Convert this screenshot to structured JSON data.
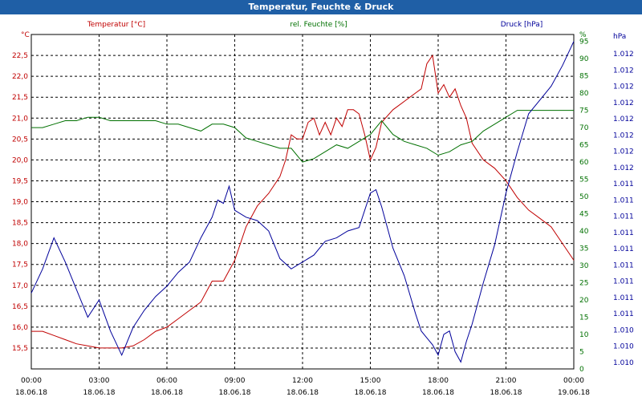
{
  "window": {
    "title": "Temperatur, Feuchte & Druck"
  },
  "colors": {
    "temperature": "#c00000",
    "humidity": "#007000",
    "pressure": "#00009a",
    "grid": "#000000",
    "frame": "#000000",
    "titlebar": "#1f5fa6"
  },
  "chart_data": {
    "type": "line",
    "grid": true,
    "x_start": "18.06.18 00:00",
    "x_end": "19.06.18 00:00",
    "x_ticks": [
      {
        "time": "00:00",
        "date": "18.06.18"
      },
      {
        "time": "03:00",
        "date": "18.06.18"
      },
      {
        "time": "06:00",
        "date": "18.06.18"
      },
      {
        "time": "09:00",
        "date": "18.06.18"
      },
      {
        "time": "12:00",
        "date": "18.06.18"
      },
      {
        "time": "15:00",
        "date": "18.06.18"
      },
      {
        "time": "18:00",
        "date": "18.06.18"
      },
      {
        "time": "21:00",
        "date": "18.06.18"
      },
      {
        "time": "00:00",
        "date": "19.06.18"
      }
    ],
    "axes": {
      "temperature": {
        "unit": "°C",
        "label": "Temperatur [°C]",
        "ylim": [
          15.0,
          23.0
        ],
        "ticks": [
          "15,5",
          "16,0",
          "16,5",
          "17,0",
          "17,5",
          "18,0",
          "18,5",
          "19,0",
          "19,5",
          "20,0",
          "20,5",
          "21,0",
          "21,5",
          "22,0",
          "22,5"
        ]
      },
      "humidity": {
        "unit": "%",
        "label": "rel. Feuchte [%]",
        "ylim": [
          0,
          97
        ],
        "ticks": [
          "0",
          "5",
          "10",
          "15",
          "20",
          "25",
          "30",
          "35",
          "40",
          "45",
          "50",
          "55",
          "60",
          "65",
          "70",
          "75",
          "80",
          "85",
          "90",
          "95"
        ]
      },
      "pressure": {
        "unit": "hPa",
        "label": "Druck [hPa]",
        "ticks": [
          "1.010",
          "1.010",
          "1.010",
          "1.011",
          "1.011",
          "1.011",
          "1.011",
          "1.011",
          "1.011",
          "1.011",
          "1.011",
          "1.011",
          "1.012",
          "1.012",
          "1.012",
          "1.012",
          "1.012",
          "1.012",
          "1.012",
          "1.012"
        ]
      }
    },
    "series": [
      {
        "name": "Temperatur [°C]",
        "axis": "temperature",
        "x": [
          0,
          0.5,
          1,
          1.5,
          2,
          2.5,
          3,
          3.5,
          4,
          4.5,
          5,
          5.5,
          6,
          6.5,
          7,
          7.5,
          8,
          8.5,
          9,
          9.5,
          10,
          10.5,
          11,
          11.25,
          11.5,
          11.75,
          12,
          12.25,
          12.5,
          12.75,
          13,
          13.25,
          13.5,
          13.75,
          14,
          14.25,
          14.5,
          14.75,
          15,
          15.25,
          15.5,
          16,
          16.5,
          17,
          17.25,
          17.5,
          17.75,
          18,
          18.25,
          18.5,
          18.75,
          19,
          19.25,
          19.5,
          20,
          20.5,
          21,
          21.5,
          22,
          22.5,
          23,
          23.5,
          24
        ],
        "values": [
          15.9,
          15.9,
          15.8,
          15.7,
          15.6,
          15.55,
          15.5,
          15.5,
          15.5,
          15.55,
          15.7,
          15.9,
          16.0,
          16.2,
          16.4,
          16.6,
          17.1,
          17.1,
          17.6,
          18.4,
          18.9,
          19.2,
          19.6,
          20.0,
          20.6,
          20.5,
          20.5,
          20.9,
          21.0,
          20.6,
          20.9,
          20.6,
          21.0,
          20.8,
          21.2,
          21.2,
          21.1,
          20.6,
          20.0,
          20.3,
          20.9,
          21.2,
          21.4,
          21.6,
          21.7,
          22.3,
          22.5,
          21.6,
          21.8,
          21.5,
          21.7,
          21.3,
          21.0,
          20.4,
          20.0,
          19.8,
          19.5,
          19.1,
          18.8,
          18.6,
          18.4,
          18.0,
          17.6
        ]
      },
      {
        "name": "rel. Feuchte [%]",
        "axis": "humidity",
        "x": [
          0,
          0.5,
          1,
          1.5,
          2,
          2.5,
          3,
          3.5,
          4,
          4.5,
          5,
          5.5,
          6,
          6.5,
          7,
          7.5,
          8,
          8.5,
          9,
          9.5,
          10,
          10.5,
          11,
          11.5,
          12,
          12.5,
          13,
          13.5,
          14,
          14.5,
          15,
          15.5,
          16,
          16.5,
          17,
          17.5,
          18,
          18.5,
          19,
          19.5,
          20,
          20.5,
          21,
          21.5,
          22,
          22.5,
          23,
          23.5,
          24
        ],
        "values": [
          70,
          70,
          71,
          72,
          72,
          73,
          73,
          72,
          72,
          72,
          72,
          72,
          71,
          71,
          70,
          69,
          71,
          71,
          70,
          67,
          66,
          65,
          64,
          64,
          60,
          61,
          63,
          65,
          64,
          66,
          68,
          72,
          68,
          66,
          65,
          64,
          62,
          63,
          65,
          66,
          69,
          71,
          73,
          75,
          75,
          75,
          75,
          75,
          75
        ]
      },
      {
        "name": "Druck [hPa]",
        "axis": "pressure",
        "x": [
          0,
          0.5,
          1,
          1.5,
          2,
          2.5,
          3,
          3.5,
          4,
          4.5,
          5,
          5.5,
          6,
          6.5,
          7,
          7.5,
          8,
          8.25,
          8.5,
          8.75,
          9,
          9.5,
          10,
          10.5,
          11,
          11.5,
          12,
          12.5,
          13,
          13.5,
          14,
          14.5,
          15,
          15.25,
          15.5,
          16,
          16.5,
          17,
          17.25,
          17.5,
          17.75,
          18,
          18.25,
          18.5,
          18.75,
          19,
          19.25,
          19.5,
          20,
          20.5,
          21,
          21.5,
          22,
          22.5,
          23,
          23.5,
          24
        ],
        "values": [
          22,
          29,
          38,
          31,
          23,
          15,
          20,
          11,
          4,
          12,
          17,
          21,
          24,
          28,
          31,
          38,
          44,
          49,
          48,
          53,
          46,
          44,
          43,
          40,
          32,
          29,
          31,
          33,
          37,
          38,
          40,
          41,
          51,
          52,
          47,
          35,
          27,
          16,
          11,
          9,
          7,
          4,
          10,
          11,
          5,
          2,
          8,
          13,
          25,
          36,
          51,
          63,
          74,
          78,
          82,
          88,
          95
        ]
      }
    ]
  }
}
